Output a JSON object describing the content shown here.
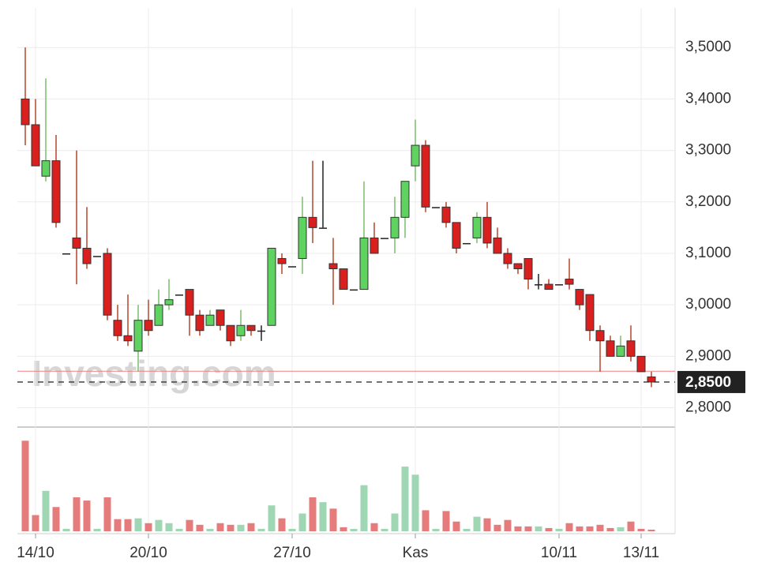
{
  "chart_data": {
    "type": "candlestick",
    "watermark": "Investing.com",
    "categories": [
      null,
      "14/10",
      null,
      null,
      null,
      null,
      null,
      null,
      null,
      null,
      null,
      null,
      "20/10",
      null,
      null,
      null,
      null,
      null,
      null,
      null,
      null,
      null,
      null,
      null,
      null,
      null,
      "27/10",
      null,
      null,
      null,
      null,
      null,
      null,
      null,
      null,
      null,
      null,
      null,
      "Kas",
      null,
      null,
      null,
      null,
      null,
      null,
      null,
      null,
      null,
      null,
      null,
      null,
      null,
      "10/11",
      null,
      null,
      null,
      null,
      null,
      null,
      null,
      "13/11",
      null
    ],
    "open": [
      3.4,
      3.35,
      3.25,
      3.28,
      3.1,
      3.13,
      3.11,
      3.095,
      3.1,
      2.97,
      2.94,
      2.91,
      2.97,
      2.96,
      3.0,
      3.02,
      3.03,
      2.98,
      2.96,
      2.99,
      2.96,
      2.94,
      2.96,
      2.95,
      2.96,
      3.09,
      3.075,
      3.09,
      3.17,
      3.15,
      3.08,
      3.07,
      3.03,
      3.03,
      3.13,
      3.13,
      3.13,
      3.17,
      3.27,
      3.31,
      3.19,
      3.19,
      3.16,
      3.12,
      3.13,
      3.17,
      3.13,
      3.1,
      3.08,
      3.09,
      3.04,
      3.04,
      3.04,
      3.05,
      3.03,
      3.02,
      2.95,
      2.93,
      2.9,
      2.93,
      2.9,
      2.86
    ],
    "high": [
      3.5,
      3.4,
      3.44,
      3.33,
      3.1,
      3.3,
      3.19,
      3.095,
      3.11,
      3.0,
      3.02,
      3.0,
      3.01,
      3.03,
      3.05,
      3.02,
      3.03,
      2.99,
      2.99,
      2.99,
      2.96,
      2.99,
      2.96,
      2.96,
      3.11,
      3.1,
      3.075,
      3.21,
      3.28,
      3.28,
      3.13,
      3.07,
      3.03,
      3.24,
      3.16,
      3.13,
      3.21,
      3.24,
      3.36,
      3.32,
      3.19,
      3.2,
      3.16,
      3.12,
      3.18,
      3.2,
      3.15,
      3.11,
      3.08,
      3.09,
      3.06,
      3.05,
      3.04,
      3.09,
      3.03,
      3.02,
      2.96,
      2.94,
      2.94,
      2.96,
      2.9,
      2.87
    ],
    "low": [
      3.31,
      3.27,
      3.24,
      3.15,
      3.1,
      3.04,
      3.07,
      3.095,
      2.97,
      2.93,
      2.92,
      2.87,
      2.94,
      2.96,
      2.99,
      3.02,
      2.94,
      2.94,
      2.96,
      2.95,
      2.92,
      2.93,
      2.94,
      2.93,
      2.96,
      3.06,
      3.075,
      3.06,
      3.12,
      3.15,
      3.0,
      3.03,
      3.03,
      3.03,
      3.1,
      3.13,
      3.1,
      3.13,
      3.24,
      3.18,
      3.19,
      3.15,
      3.1,
      3.12,
      3.12,
      3.11,
      3.1,
      3.07,
      3.06,
      3.03,
      3.03,
      3.03,
      3.04,
      3.03,
      2.99,
      2.93,
      2.87,
      2.9,
      2.9,
      2.89,
      2.87,
      2.84
    ],
    "close": [
      3.35,
      3.27,
      3.28,
      3.16,
      3.1,
      3.11,
      3.08,
      3.095,
      2.98,
      2.94,
      2.93,
      2.97,
      2.95,
      3.0,
      3.01,
      3.02,
      2.98,
      2.95,
      2.98,
      2.96,
      2.93,
      2.96,
      2.95,
      2.95,
      3.11,
      3.08,
      3.075,
      3.17,
      3.15,
      3.15,
      3.07,
      3.03,
      3.03,
      3.13,
      3.1,
      3.13,
      3.17,
      3.24,
      3.31,
      3.19,
      3.19,
      3.16,
      3.11,
      3.12,
      3.17,
      3.12,
      3.1,
      3.08,
      3.07,
      3.05,
      3.04,
      3.03,
      3.04,
      3.04,
      3.0,
      2.95,
      2.93,
      2.9,
      2.92,
      2.9,
      2.87,
      2.85
    ],
    "volume": [
      112,
      20,
      50,
      30,
      3,
      42,
      38,
      3,
      42,
      15,
      15,
      16,
      10,
      14,
      10,
      3,
      14,
      8,
      3,
      10,
      8,
      8,
      10,
      3,
      32,
      16,
      3,
      22,
      42,
      36,
      28,
      5,
      3,
      57,
      10,
      3,
      22,
      80,
      70,
      26,
      3,
      25,
      12,
      3,
      18,
      16,
      8,
      14,
      6,
      6,
      6,
      4,
      3,
      10,
      6,
      6,
      8,
      4,
      5,
      12,
      3,
      2
    ],
    "up_color": "#5fd35f",
    "down_color": "#d9201e",
    "flat_color": "#222222",
    "vol_up_color": "#9fd6b3",
    "vol_down_color": "#e57b7b",
    "ylim": [
      2.764,
      3.577
    ],
    "yticks": [
      {
        "value": 2.8,
        "label": "2,8000"
      },
      {
        "value": 2.9,
        "label": "2,9000"
      },
      {
        "value": 3.0,
        "label": "3,0000"
      },
      {
        "value": 3.1,
        "label": "3,1000"
      },
      {
        "value": 3.2,
        "label": "3,2000"
      },
      {
        "value": 3.3,
        "label": "3,3000"
      },
      {
        "value": 3.4,
        "label": "3,4000"
      },
      {
        "value": 3.5,
        "label": "3,5000"
      }
    ],
    "vlim": [
      0,
      125
    ],
    "last_price": {
      "value": 2.85,
      "label": "2,8500"
    },
    "reference_line": 2.871,
    "grid": true
  }
}
